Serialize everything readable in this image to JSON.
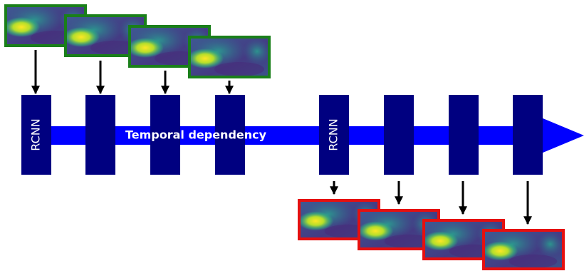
{
  "arrow_label": "Temporal dependency",
  "encoder_label": "RCNN",
  "decoder_label": "RCNN"
}
